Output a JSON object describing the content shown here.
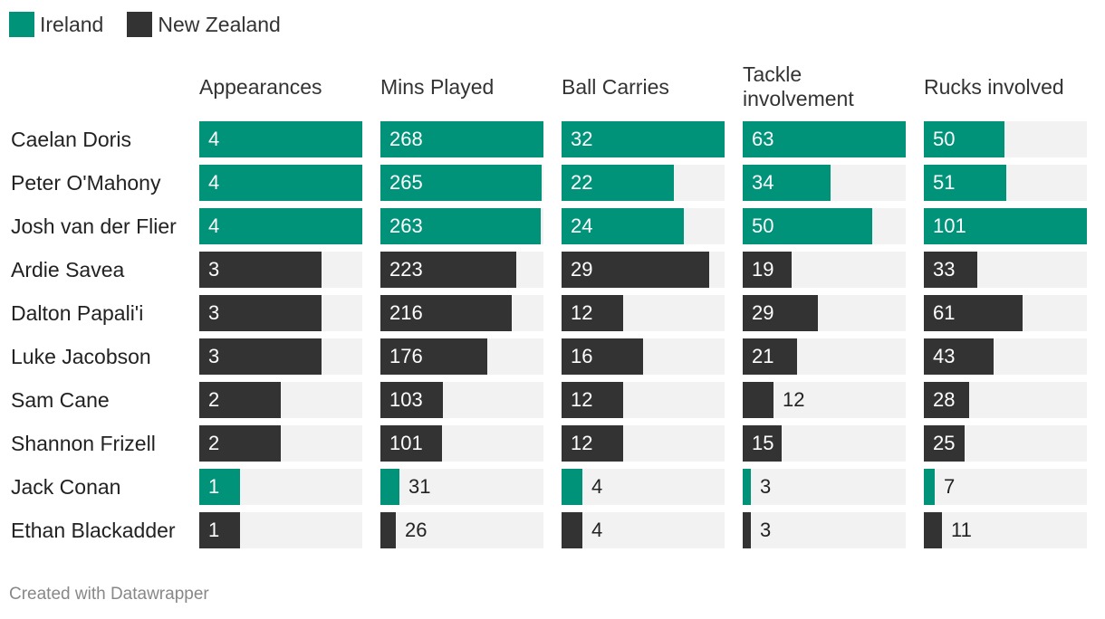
{
  "legend": [
    {
      "label": "Ireland",
      "color": "#00937a"
    },
    {
      "label": "New Zealand",
      "color": "#333333"
    }
  ],
  "footer": "Created with Datawrapper",
  "chart_data": {
    "type": "table",
    "columns": [
      "Appearances",
      "Mins Played",
      "Ball Carries",
      "Tackle involvement",
      "Rucks involved"
    ],
    "rows": [
      {
        "player": "Caelan Doris",
        "team": "Ireland",
        "values": [
          4,
          268,
          32,
          63,
          50
        ]
      },
      {
        "player": "Peter O'Mahony",
        "team": "Ireland",
        "values": [
          4,
          265,
          22,
          34,
          51
        ]
      },
      {
        "player": "Josh van der Flier",
        "team": "Ireland",
        "values": [
          4,
          263,
          24,
          50,
          101
        ]
      },
      {
        "player": "Ardie Savea",
        "team": "New Zealand",
        "values": [
          3,
          223,
          29,
          19,
          33
        ]
      },
      {
        "player": "Dalton Papali'i",
        "team": "New Zealand",
        "values": [
          3,
          216,
          12,
          29,
          61
        ]
      },
      {
        "player": "Luke Jacobson",
        "team": "New Zealand",
        "values": [
          3,
          176,
          16,
          21,
          43
        ]
      },
      {
        "player": "Sam Cane",
        "team": "New Zealand",
        "values": [
          2,
          103,
          12,
          12,
          28
        ]
      },
      {
        "player": "Shannon Frizell",
        "team": "New Zealand",
        "values": [
          2,
          101,
          12,
          15,
          25
        ]
      },
      {
        "player": "Jack Conan",
        "team": "Ireland",
        "values": [
          1,
          31,
          4,
          3,
          7
        ]
      },
      {
        "player": "Ethan Blackadder",
        "team": "New Zealand",
        "values": [
          1,
          26,
          4,
          3,
          11
        ]
      }
    ],
    "column_max": [
      4,
      268,
      32,
      63,
      101
    ]
  }
}
